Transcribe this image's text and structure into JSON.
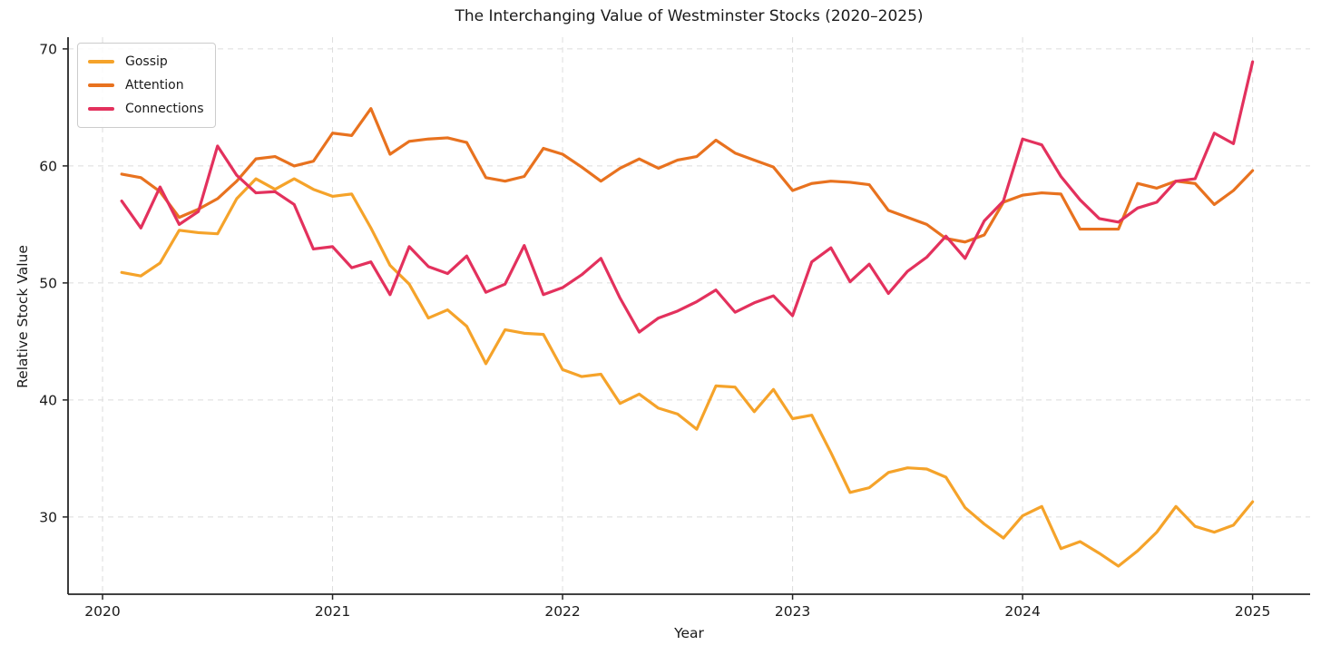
{
  "chart_data": {
    "type": "line",
    "title": "The Interchanging Value of Westminster Stocks (2020–2025)",
    "xlabel": "Year",
    "ylabel": "Relative Stock Value",
    "x_ticks": [
      2020,
      2021,
      2022,
      2023,
      2024,
      2025
    ],
    "y_ticks": [
      30,
      40,
      50,
      60,
      70
    ],
    "xlim": [
      2019.85,
      2025.25
    ],
    "ylim": [
      23.4,
      71.0
    ],
    "grid": "dashed-both-axes",
    "legend_position": "upper-left",
    "x_start": 2020.0833,
    "x_step_years": 0.0833333,
    "points_per_series": 60,
    "series": [
      {
        "name": "Gossip",
        "color": "#F5A32A",
        "values": [
          50.9,
          50.6,
          51.7,
          54.5,
          54.3,
          54.2,
          57.2,
          58.9,
          58.0,
          58.9,
          58.0,
          57.4,
          57.6,
          54.7,
          51.5,
          49.9,
          47.0,
          47.7,
          46.3,
          43.1,
          46.0,
          45.7,
          45.6,
          42.6,
          42.0,
          42.2,
          39.7,
          40.5,
          39.3,
          38.8,
          37.5,
          41.2,
          41.1,
          39.0,
          40.9,
          38.4,
          38.7,
          35.5,
          32.1,
          32.5,
          33.8,
          34.2,
          34.1,
          33.4,
          30.8,
          29.4,
          28.2,
          30.1,
          30.9,
          27.3,
          27.9,
          26.9,
          25.8,
          27.1,
          28.7,
          30.9,
          29.2,
          28.7,
          29.3,
          31.3
        ]
      },
      {
        "name": "Attention",
        "color": "#E8721F",
        "values": [
          59.3,
          59.0,
          57.8,
          55.6,
          56.3,
          57.2,
          58.7,
          60.6,
          60.8,
          60.0,
          60.4,
          62.8,
          62.6,
          64.9,
          61.0,
          62.1,
          62.3,
          62.4,
          62.0,
          59.0,
          58.7,
          59.1,
          61.5,
          61.0,
          59.9,
          58.7,
          59.8,
          60.6,
          59.8,
          60.5,
          60.8,
          62.2,
          61.1,
          60.5,
          59.9,
          57.9,
          58.5,
          58.7,
          58.6,
          58.4,
          56.2,
          55.6,
          55.0,
          53.8,
          53.5,
          54.1,
          56.9,
          57.5,
          57.7,
          57.6,
          54.6,
          54.6,
          54.6,
          58.5,
          58.1,
          58.7,
          58.5,
          56.7,
          57.9,
          59.6
        ]
      },
      {
        "name": "Connections",
        "color": "#E3315D",
        "values": [
          57.0,
          54.7,
          58.2,
          55.0,
          56.1,
          61.7,
          59.2,
          57.7,
          57.8,
          56.7,
          52.9,
          53.1,
          51.3,
          51.8,
          49.0,
          53.1,
          51.4,
          50.8,
          52.3,
          49.2,
          49.9,
          53.2,
          49.0,
          49.6,
          50.7,
          52.1,
          48.7,
          45.8,
          47.0,
          47.6,
          48.4,
          49.4,
          47.5,
          48.3,
          48.9,
          47.2,
          51.8,
          53.0,
          50.1,
          51.6,
          49.1,
          51.0,
          52.2,
          54.0,
          52.1,
          55.3,
          57.0,
          62.3,
          61.8,
          59.1,
          57.1,
          55.5,
          55.2,
          56.4,
          56.9,
          58.7,
          58.9,
          62.8,
          61.9,
          68.9
        ]
      }
    ]
  },
  "colors": {
    "background": "#FFFFFF",
    "grid": "#DCDCDC",
    "spine": "#262626",
    "text": "#1A1A1A",
    "legend_border": "#CCCCCC"
  }
}
